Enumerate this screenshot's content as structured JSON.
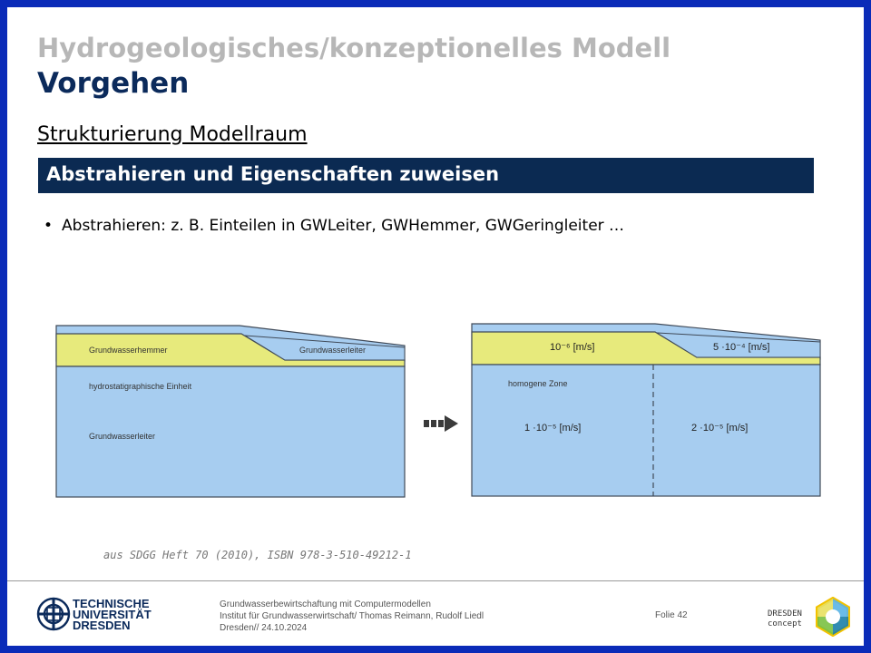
{
  "header": {
    "title": "Hydrogeologisches/konzeptionelles Modell",
    "subtitle": "Vorgehen"
  },
  "section": {
    "heading": "Strukturierung  Modellraum",
    "banner": "Abstrahieren und Eigenschaften zuweisen"
  },
  "bullets": [
    "Abstrahieren: z. B. Einteilen in GWLeiter, GWHemmer, GWGeringleiter …"
  ],
  "figure": {
    "left": {
      "label_aquitard": "Grundwasserhemmer",
      "label_aquifer_top": "Grundwasserleiter",
      "label_unit": "hydrostatigraphische Einheit",
      "label_aquifer": "Grundwasserleiter"
    },
    "right": {
      "k_aquitard": "10⁻⁶ [m/s]",
      "k_top_right": "5 ·10⁻⁴ [m/s]",
      "label_zone": "homogene Zone",
      "k_zone_left": "1 ·10⁻⁵ [m/s]",
      "k_zone_right": "2 ·10⁻⁵ [m/s]"
    },
    "colors": {
      "water": "#a7cdf0",
      "aquitard": "#e7ea7c",
      "outline": "#404a58"
    }
  },
  "source": "aus SDGG  Heft 70 (2010), ISBN  978-3-510-49212-1",
  "footer": {
    "line1": "Grundwasserbewirtschaftung mit Computermodellen",
    "line2": "Institut für Grundwasserwirtschaft/ Thomas Reimann, Rudolf Liedl",
    "line3": "Dresden// 24.10.2024",
    "page": "Folie 42",
    "tud_line1": "TECHNISCHE",
    "tud_line2": "UNIVERSITÄT",
    "tud_line3": "DRESDEN",
    "dd_line1": "DRESDEN",
    "dd_line2": "concept"
  }
}
